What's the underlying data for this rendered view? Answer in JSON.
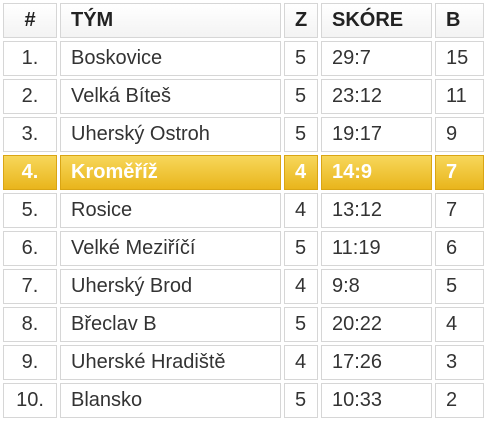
{
  "table": {
    "headers": [
      "#",
      "TÝM",
      "Z",
      "SKÓRE",
      "B"
    ],
    "rows": [
      [
        "1.",
        "Boskovice",
        "5",
        "29:7",
        "15"
      ],
      [
        "2.",
        "Velká Bíteš",
        "5",
        "23:12",
        "11"
      ],
      [
        "3.",
        "Uherský Ostroh",
        "5",
        "19:17",
        "9"
      ],
      [
        "4.",
        "Kroměříž",
        "4",
        "14:9",
        "7"
      ],
      [
        "5.",
        "Rosice",
        "4",
        "13:12",
        "7"
      ],
      [
        "6.",
        "Velké Meziříčí",
        "5",
        "11:19",
        "6"
      ],
      [
        "7.",
        "Uherský Brod",
        "4",
        "9:8",
        "5"
      ],
      [
        "8.",
        "Břeclav B",
        "5",
        "20:22",
        "4"
      ],
      [
        "9.",
        "Uherské Hradiště",
        "4",
        "17:26",
        "3"
      ],
      [
        "10.",
        "Blansko",
        "5",
        "10:33",
        "2"
      ]
    ]
  }
}
